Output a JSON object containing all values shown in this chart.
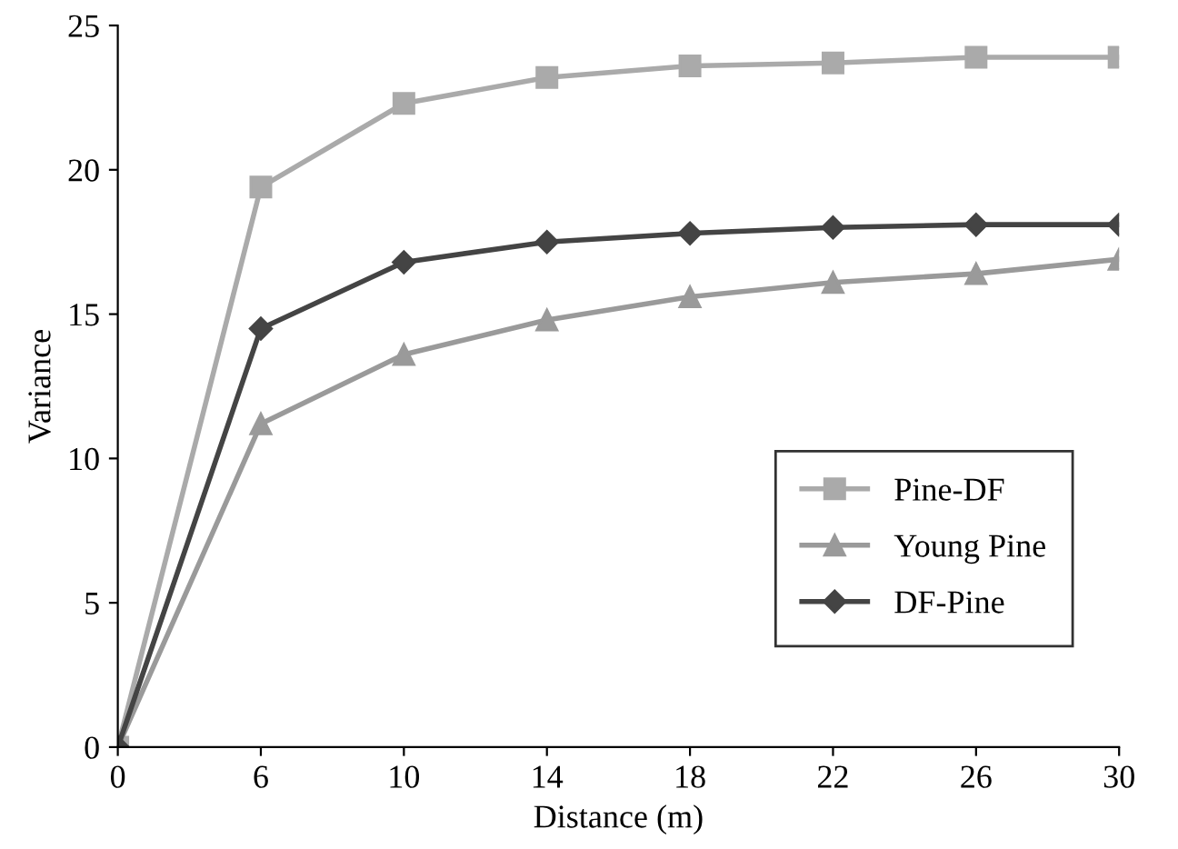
{
  "chart_data": {
    "type": "line",
    "xlabel": "Distance (m)",
    "ylabel": "Variance",
    "categories": [
      "0",
      "6",
      "10",
      "14",
      "18",
      "22",
      "26",
      "30"
    ],
    "ylim": [
      0,
      25
    ],
    "yticks": [
      0,
      5,
      10,
      15,
      20,
      25
    ],
    "grid": false,
    "legend": "center right",
    "series": [
      {
        "name": "Pine-DF",
        "color": "#aaaaaa",
        "marker": "square",
        "values": [
          0,
          19.4,
          22.3,
          23.2,
          23.6,
          23.7,
          23.9,
          23.9
        ]
      },
      {
        "name": "Young Pine",
        "color": "#9a9a9a",
        "marker": "triangle",
        "values": [
          0,
          11.2,
          13.6,
          14.8,
          15.6,
          16.1,
          16.4,
          16.9
        ]
      },
      {
        "name": "DF-Pine",
        "color": "#444444",
        "marker": "diamond",
        "values": [
          0,
          14.5,
          16.8,
          17.5,
          17.8,
          18.0,
          18.1,
          18.1
        ]
      }
    ]
  }
}
